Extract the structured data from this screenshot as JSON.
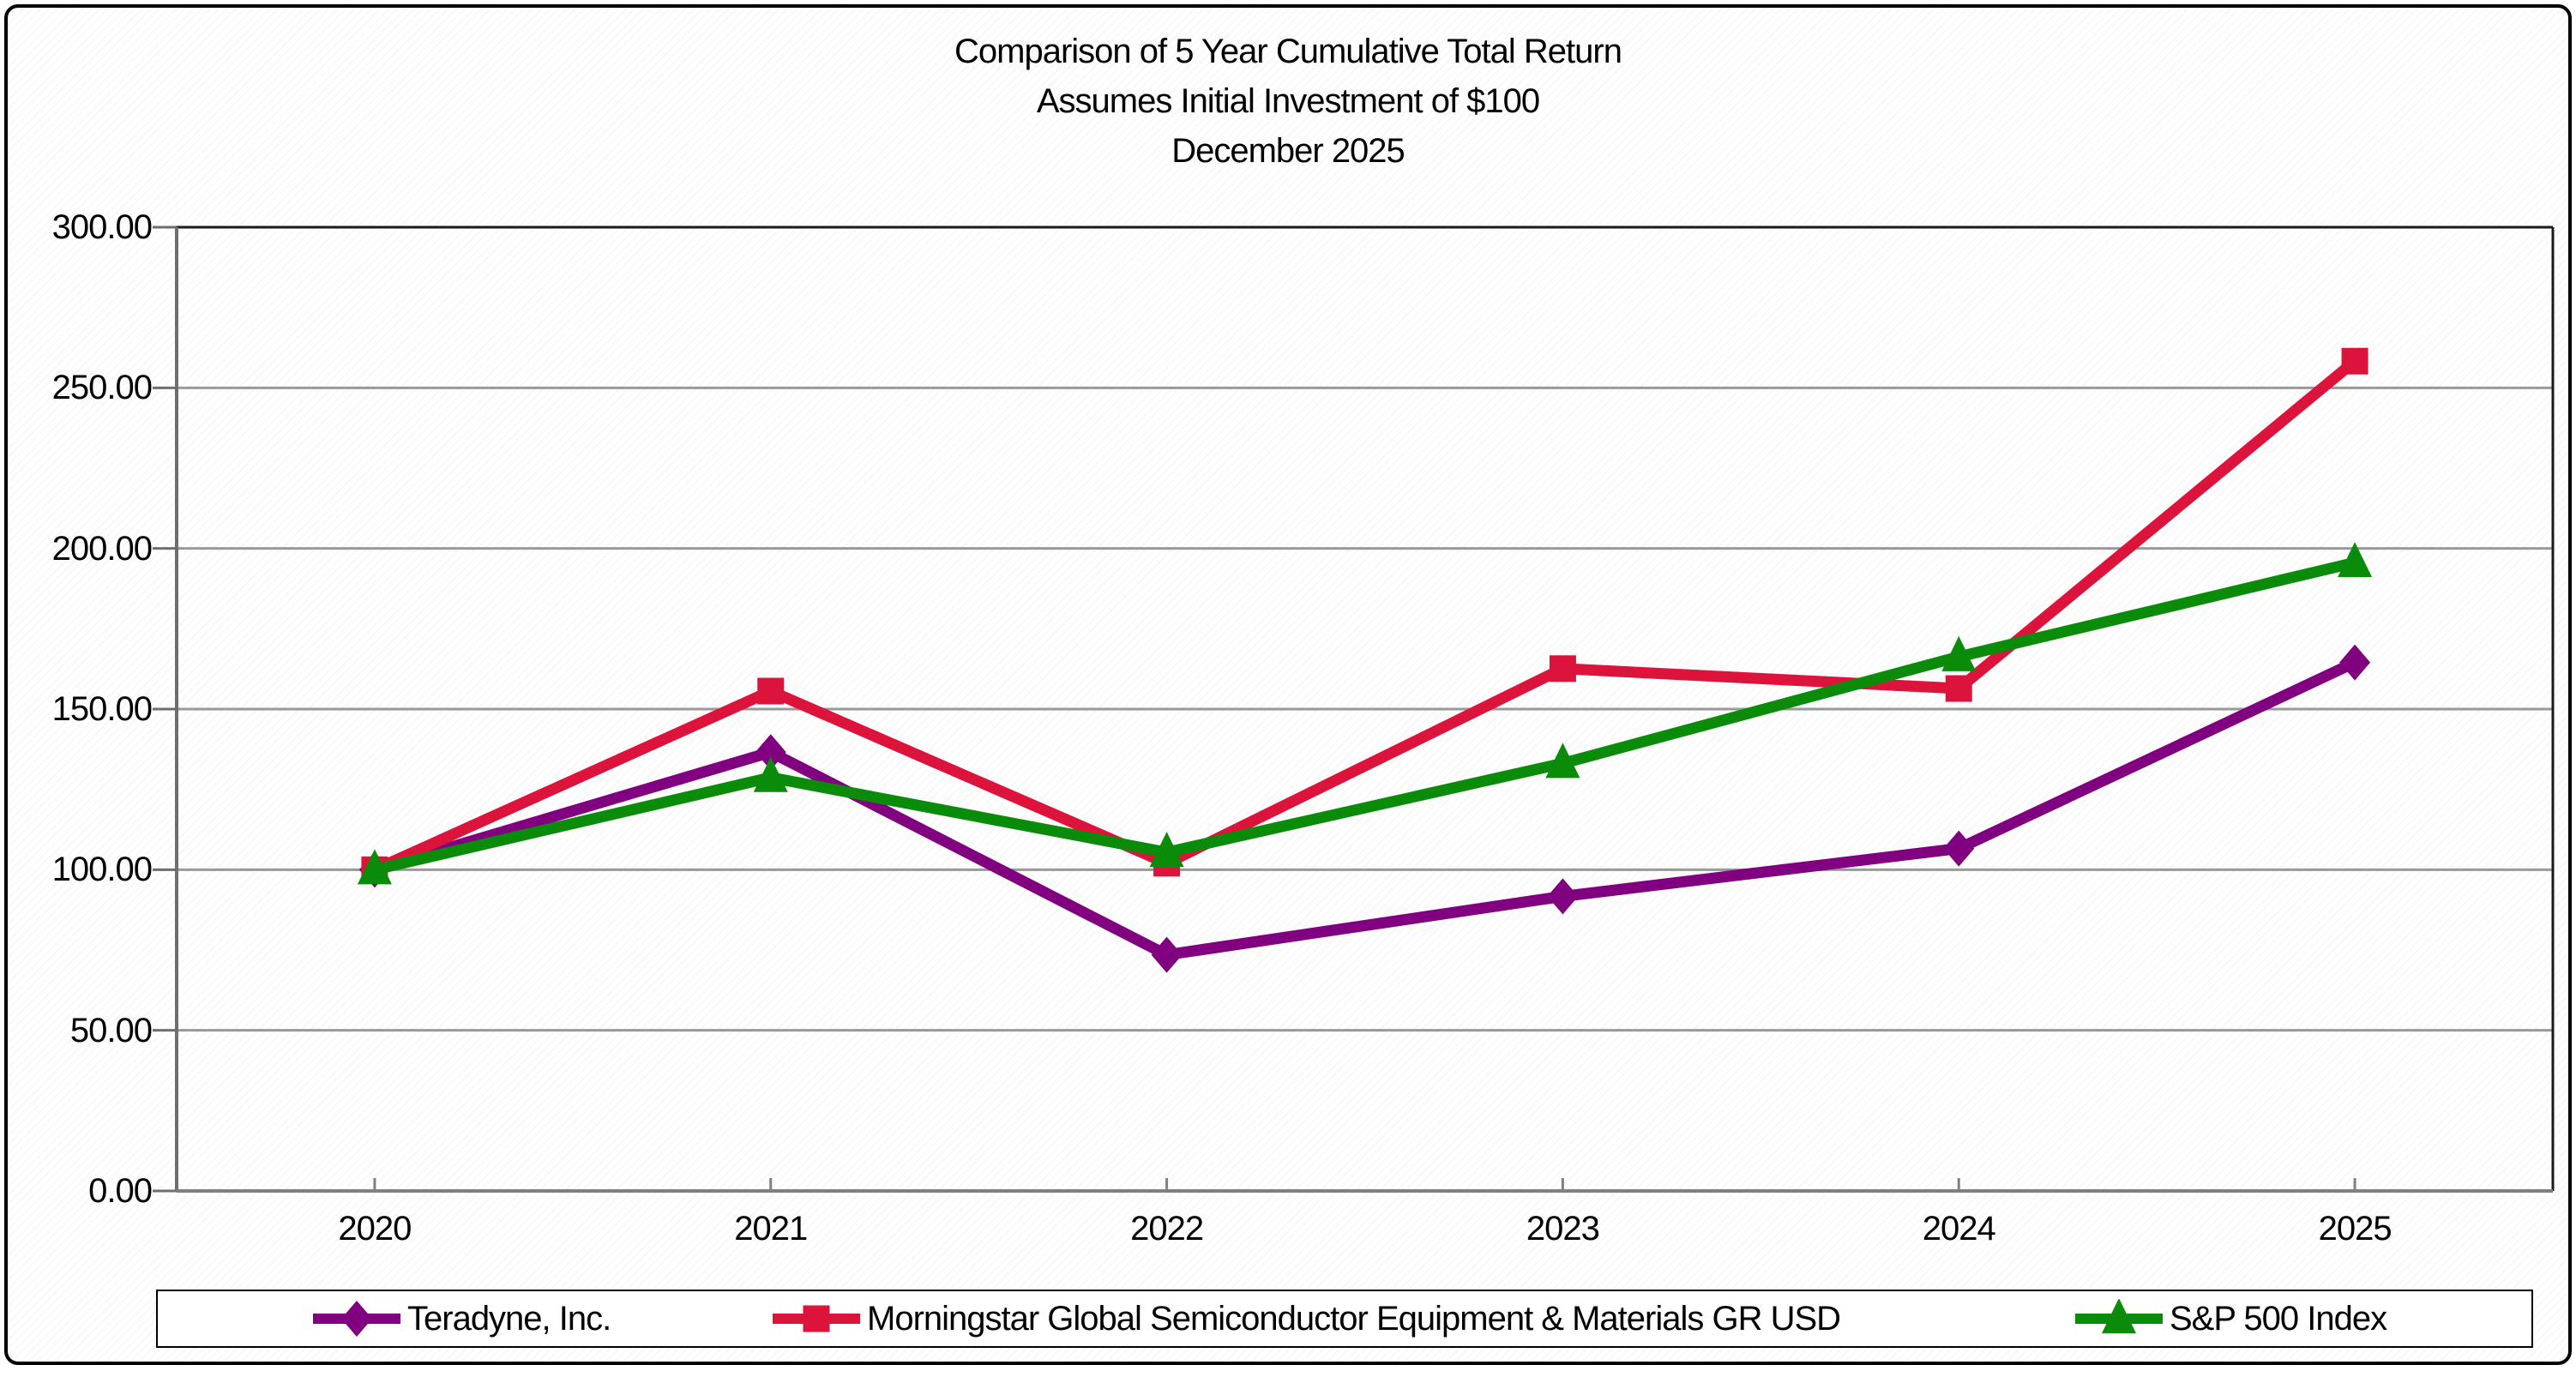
{
  "chart_data": {
    "type": "line",
    "title": "Comparison of 5 Year Cumulative Total Return",
    "title_lines": [
      "Comparison of 5 Year Cumulative Total Return",
      "Assumes Initial Investment of $100",
      "December 2025"
    ],
    "categories": [
      "2020",
      "2021",
      "2022",
      "2023",
      "2024",
      "2025"
    ],
    "series": [
      {
        "name": "Teradyne, Inc.",
        "color": "#800080",
        "marker": "diamond",
        "values": [
          100.0,
          136.6,
          73.5,
          91.7,
          106.6,
          164.5
        ]
      },
      {
        "name": "Morningstar Global Semiconductor Equipment & Materials GR USD",
        "color": "#DC143C",
        "marker": "square",
        "values": [
          100.0,
          155.6,
          102.0,
          162.6,
          156.4,
          258.3
        ]
      },
      {
        "name": "S&P 500 Index",
        "color": "#0A8C0A",
        "marker": "triangle",
        "values": [
          100.0,
          128.7,
          105.4,
          133.1,
          166.3,
          195.6
        ]
      }
    ],
    "xlabel": "",
    "ylabel": "",
    "ylim": [
      0,
      300
    ],
    "ytick_step": 50,
    "ytick_decimals": 2,
    "grid": true,
    "legend_position": "bottom",
    "colors": {
      "gridline": "#999999",
      "axis_left": "#6E6E6E",
      "axis_bottom": "#808080",
      "frame_dark": "#1A1A1A",
      "text": "#000000",
      "legend_border": "#000000"
    }
  }
}
